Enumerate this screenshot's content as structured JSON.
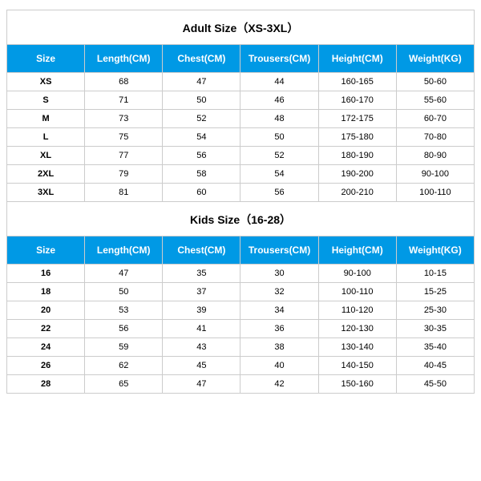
{
  "styles": {
    "header_bg": "#0099e5",
    "header_text_color": "#ffffff",
    "border_color": "#cccccc",
    "title_fontsize": 14,
    "header_fontsize": 12,
    "cell_fontsize": 11
  },
  "tables": [
    {
      "title": "Adult Size（XS-3XL）",
      "columns": [
        "Size",
        "Length(CM)",
        "Chest(CM)",
        "Trousers(CM)",
        "Height(CM)",
        "Weight(KG)"
      ],
      "rows": [
        [
          "XS",
          "68",
          "47",
          "44",
          "160-165",
          "50-60"
        ],
        [
          "S",
          "71",
          "50",
          "46",
          "160-170",
          "55-60"
        ],
        [
          "M",
          "73",
          "52",
          "48",
          "172-175",
          "60-70"
        ],
        [
          "L",
          "75",
          "54",
          "50",
          "175-180",
          "70-80"
        ],
        [
          "XL",
          "77",
          "56",
          "52",
          "180-190",
          "80-90"
        ],
        [
          "2XL",
          "79",
          "58",
          "54",
          "190-200",
          "90-100"
        ],
        [
          "3XL",
          "81",
          "60",
          "56",
          "200-210",
          "100-110"
        ]
      ]
    },
    {
      "title": "Kids Size（16-28）",
      "columns": [
        "Size",
        "Length(CM)",
        "Chest(CM)",
        "Trousers(CM)",
        "Height(CM)",
        "Weight(KG)"
      ],
      "rows": [
        [
          "16",
          "47",
          "35",
          "30",
          "90-100",
          "10-15"
        ],
        [
          "18",
          "50",
          "37",
          "32",
          "100-110",
          "15-25"
        ],
        [
          "20",
          "53",
          "39",
          "34",
          "110-120",
          "25-30"
        ],
        [
          "22",
          "56",
          "41",
          "36",
          "120-130",
          "30-35"
        ],
        [
          "24",
          "59",
          "43",
          "38",
          "130-140",
          "35-40"
        ],
        [
          "26",
          "62",
          "45",
          "40",
          "140-150",
          "40-45"
        ],
        [
          "28",
          "65",
          "47",
          "42",
          "150-160",
          "45-50"
        ]
      ]
    }
  ]
}
